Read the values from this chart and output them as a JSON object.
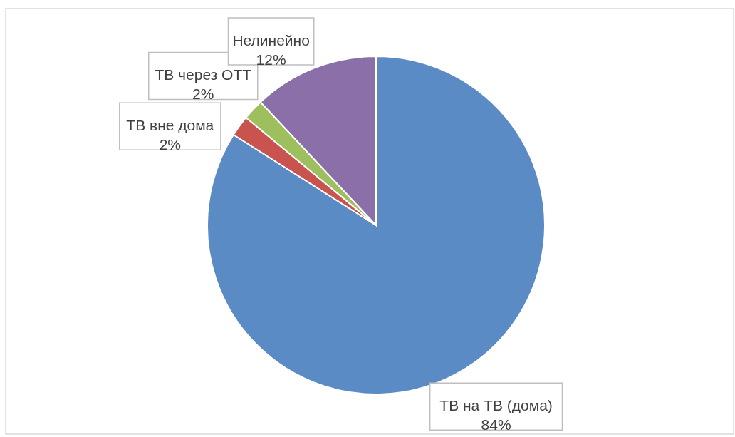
{
  "chart_data": {
    "type": "pie",
    "categories": [
      "ТВ на ТВ (дома)",
      "ТВ вне дома",
      "ТВ через OTT",
      "Нелинейно"
    ],
    "values": [
      84,
      2,
      2,
      12
    ],
    "colors": [
      "#5b8bc5",
      "#c9534f",
      "#9dbf5d",
      "#8a6fa8"
    ],
    "value_labels": [
      "84%",
      "2%",
      "2%",
      "12%"
    ]
  }
}
